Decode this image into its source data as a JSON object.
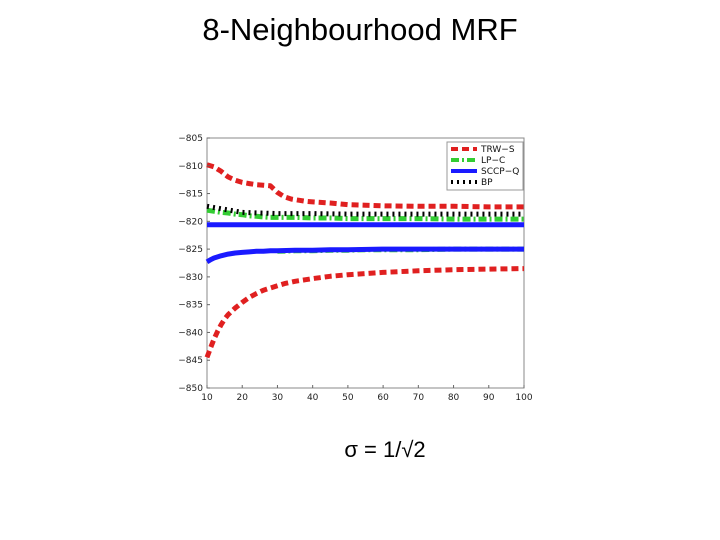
{
  "slide": {
    "title": "8-Neighbourhood MRF",
    "caption": "σ = 1/√2"
  },
  "chart_data": {
    "type": "line",
    "title": "",
    "xlabel": "",
    "ylabel": "",
    "xlim": [
      10,
      100
    ],
    "ylim": [
      -850,
      -805
    ],
    "x_ticks": [
      10,
      20,
      30,
      40,
      50,
      60,
      70,
      80,
      90,
      100
    ],
    "y_ticks": [
      -805,
      -810,
      -815,
      -820,
      -825,
      -830,
      -835,
      -840,
      -845,
      -850
    ],
    "x_tick_labels": [
      "10",
      "20",
      "30",
      "40",
      "50",
      "60",
      "70",
      "80",
      "90",
      "100"
    ],
    "y_tick_labels": [
      "−805",
      "−810",
      "−815",
      "−820",
      "−825",
      "−830",
      "−835",
      "−840",
      "−845",
      "−850"
    ],
    "grid": false,
    "legend_position": "top-right",
    "legend": [
      "TRW−S",
      "LP−C",
      "SCCP−Q",
      "BP"
    ],
    "series": [
      {
        "name": "TRW−S",
        "color": "#e02020",
        "style": "dashed",
        "width": 5,
        "x": [
          10,
          12,
          14,
          16,
          18,
          20,
          22,
          24,
          26,
          28,
          30,
          32,
          34,
          36,
          38,
          40,
          45,
          50,
          55,
          60,
          70,
          80,
          90,
          100
        ],
        "y": [
          -809.8,
          -810.2,
          -811.0,
          -812.0,
          -812.6,
          -813.0,
          -813.2,
          -813.4,
          -813.5,
          -813.6,
          -814.8,
          -815.6,
          -816.0,
          -816.2,
          -816.4,
          -816.5,
          -816.7,
          -817.0,
          -817.1,
          -817.2,
          -817.3,
          -817.3,
          -817.4,
          -817.4
        ]
      },
      {
        "name": "TRW−S",
        "color": "#e02020",
        "style": "dashed",
        "width": 5,
        "x": [
          10,
          11,
          12,
          13,
          14,
          15,
          16,
          18,
          20,
          22,
          24,
          26,
          28,
          30,
          32,
          35,
          38,
          40,
          45,
          50,
          55,
          60,
          70,
          80,
          90,
          100
        ],
        "y": [
          -844.5,
          -842.8,
          -841.2,
          -839.8,
          -838.6,
          -837.6,
          -836.8,
          -835.6,
          -834.6,
          -833.7,
          -833.0,
          -832.4,
          -832.0,
          -831.6,
          -831.2,
          -830.8,
          -830.5,
          -830.3,
          -829.9,
          -829.6,
          -829.4,
          -829.2,
          -828.9,
          -828.7,
          -828.6,
          -828.5
        ]
      },
      {
        "name": "LP−C",
        "color": "#33cc33",
        "style": "dashdot",
        "width": 5,
        "x": [
          10,
          12,
          14,
          16,
          18,
          20,
          22,
          24,
          26,
          28,
          30,
          35,
          40,
          45,
          50,
          55,
          60,
          70,
          80,
          90,
          100
        ],
        "y": [
          -818.0,
          -818.2,
          -818.4,
          -818.5,
          -818.7,
          -818.8,
          -819.0,
          -819.1,
          -819.2,
          -819.3,
          -819.3,
          -819.3,
          -819.4,
          -819.4,
          -819.5,
          -819.5,
          -819.5,
          -819.5,
          -819.6,
          -819.6,
          -819.6
        ]
      },
      {
        "name": "LP−C",
        "color": "#33cc33",
        "style": "dashdot",
        "width": 5,
        "x": [
          30,
          35,
          40,
          45,
          50,
          55,
          60,
          70,
          80,
          90,
          100
        ],
        "y": [
          -825.4,
          -825.3,
          -825.3,
          -825.2,
          -825.2,
          -825.1,
          -825.1,
          -825.1,
          -825.0,
          -825.0,
          -825.0
        ]
      },
      {
        "name": "SCCP−Q",
        "color": "#1a1aff",
        "style": "solid",
        "width": 5,
        "x": [
          10,
          20,
          30,
          40,
          50,
          60,
          70,
          80,
          90,
          100
        ],
        "y": [
          -820.6,
          -820.6,
          -820.6,
          -820.6,
          -820.6,
          -820.6,
          -820.6,
          -820.6,
          -820.6,
          -820.6
        ]
      },
      {
        "name": "SCCP−Q",
        "color": "#1a1aff",
        "style": "solid",
        "width": 5,
        "x": [
          10,
          11,
          12,
          13,
          14,
          16,
          18,
          20,
          22,
          24,
          26,
          28,
          30,
          35,
          40,
          45,
          50,
          60,
          70,
          80,
          90,
          100
        ],
        "y": [
          -827.3,
          -826.9,
          -826.6,
          -826.4,
          -826.2,
          -825.9,
          -825.7,
          -825.6,
          -825.5,
          -825.4,
          -825.4,
          -825.3,
          -825.3,
          -825.2,
          -825.2,
          -825.1,
          -825.1,
          -825.0,
          -825.0,
          -825.0,
          -825.0,
          -825.0
        ]
      },
      {
        "name": "BP",
        "color": "#000000",
        "style": "dotted",
        "width": 5,
        "x": [
          10,
          20,
          30,
          40,
          50,
          60,
          70,
          80,
          90,
          100
        ],
        "y": [
          -817.3,
          -818.4,
          -818.6,
          -818.6,
          -818.7,
          -818.7,
          -818.7,
          -818.7,
          -818.7,
          -818.7
        ]
      }
    ]
  }
}
